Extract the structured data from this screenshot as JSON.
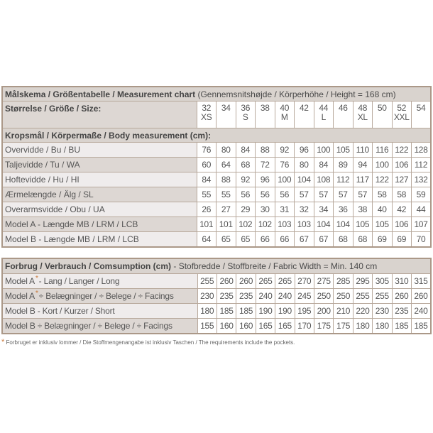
{
  "measurement": {
    "title_bold": "Målskema / Größentabelle / Measurement chart",
    "title_rest": " (Gennemsnitshøjde / Körperhöhe / Height = 168 cm)",
    "size_label": "Størrelse / Größe / Size:",
    "sizes": [
      {
        "num": "32",
        "letter": "XS"
      },
      {
        "num": "34",
        "letter": ""
      },
      {
        "num": "36",
        "letter": "S"
      },
      {
        "num": "38",
        "letter": ""
      },
      {
        "num": "40",
        "letter": "M"
      },
      {
        "num": "42",
        "letter": ""
      },
      {
        "num": "44",
        "letter": "L"
      },
      {
        "num": "46",
        "letter": ""
      },
      {
        "num": "48",
        "letter": "XL"
      },
      {
        "num": "50",
        "letter": ""
      },
      {
        "num": "52",
        "letter": "XXL"
      },
      {
        "num": "54",
        "letter": ""
      }
    ],
    "body_header": "Kropsmål / Körpermaße / Body measurement (cm):",
    "rows": [
      {
        "label": "Overvidde / Bu / BU",
        "values": [
          "76",
          "80",
          "84",
          "88",
          "92",
          "96",
          "100",
          "105",
          "110",
          "116",
          "122",
          "128"
        ]
      },
      {
        "label": "Taljevidde / Tu / WA",
        "values": [
          "60",
          "64",
          "68",
          "72",
          "76",
          "80",
          "84",
          "89",
          "94",
          "100",
          "106",
          "112"
        ]
      },
      {
        "label": "Hoftevidde / Hu / HI",
        "values": [
          "84",
          "88",
          "92",
          "96",
          "100",
          "104",
          "108",
          "112",
          "117",
          "122",
          "127",
          "132"
        ]
      },
      {
        "label": "Ærmelængde / Älg / SL",
        "values": [
          "55",
          "55",
          "56",
          "56",
          "56",
          "57",
          "57",
          "57",
          "57",
          "58",
          "58",
          "59"
        ]
      },
      {
        "label": "Overarmsvidde / Obu / UA",
        "values": [
          "26",
          "27",
          "29",
          "30",
          "31",
          "32",
          "34",
          "36",
          "38",
          "40",
          "42",
          "44"
        ]
      },
      {
        "label": "Model A - Længde MB / LRM / LCB",
        "values": [
          "101",
          "101",
          "102",
          "102",
          "103",
          "103",
          "104",
          "104",
          "105",
          "105",
          "106",
          "107"
        ]
      },
      {
        "label": "Model B - Længde MB / LRM / LCB",
        "values": [
          "64",
          "65",
          "65",
          "66",
          "66",
          "67",
          "67",
          "68",
          "68",
          "69",
          "69",
          "70"
        ]
      }
    ]
  },
  "consumption": {
    "title_bold": "Forbrug / Verbrauch / Comsumption (cm)",
    "title_rest": " - Stofbredde / Stoffbreite / Fabric Width = Min. 140 cm",
    "rows": [
      {
        "prefix": "Model A",
        "star": "*",
        "label": "- Lang / Langer / Long",
        "values": [
          "255",
          "260",
          "260",
          "265",
          "265",
          "270",
          "275",
          "285",
          "295",
          "305",
          "310",
          "315"
        ]
      },
      {
        "prefix": "Model A",
        "star": "*",
        "label": "÷ Belægninger / ÷ Belege / ÷ Facings",
        "values": [
          "230",
          "235",
          "235",
          "240",
          "240",
          "245",
          "250",
          "250",
          "255",
          "255",
          "260",
          "260"
        ]
      },
      {
        "prefix": "Model B - Kort / Kurzer / Short",
        "star": "",
        "label": "",
        "values": [
          "180",
          "185",
          "185",
          "190",
          "190",
          "195",
          "200",
          "210",
          "220",
          "230",
          "235",
          "240"
        ]
      },
      {
        "prefix": "Model B ÷ Belægninger / ÷ Belege / ÷ Facings",
        "star": "",
        "label": "",
        "values": [
          "155",
          "160",
          "160",
          "165",
          "165",
          "170",
          "175",
          "175",
          "180",
          "180",
          "185",
          "185"
        ]
      }
    ]
  },
  "footnote": {
    "star": "*",
    "text": "Forbruget er inklusiv lommer / Die Stoffmengenangabe ist inklusiv Taschen / The requirements include the pockets."
  },
  "colors": {
    "border": "#ab9888",
    "header_bg": "#d9d3ce",
    "accent_star": "#c9793a"
  }
}
